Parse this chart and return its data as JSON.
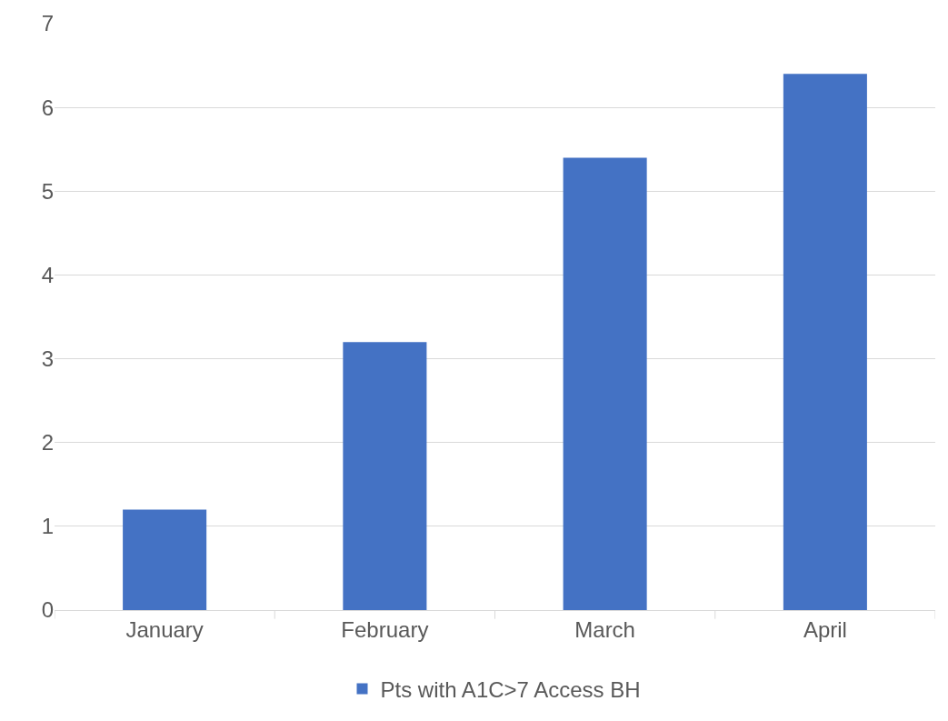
{
  "chart_data": {
    "type": "bar",
    "categories": [
      "January",
      "February",
      "March",
      "April"
    ],
    "series": [
      {
        "name": "Pts with A1C>7 Access BH",
        "color": "#4472c4",
        "values": [
          1.2,
          3.2,
          5.4,
          6.4
        ]
      }
    ],
    "ylim": [
      0,
      7
    ],
    "yticks": [
      0,
      1,
      2,
      3,
      4,
      5,
      6,
      7
    ],
    "grid": "y",
    "legend": "bottom"
  }
}
